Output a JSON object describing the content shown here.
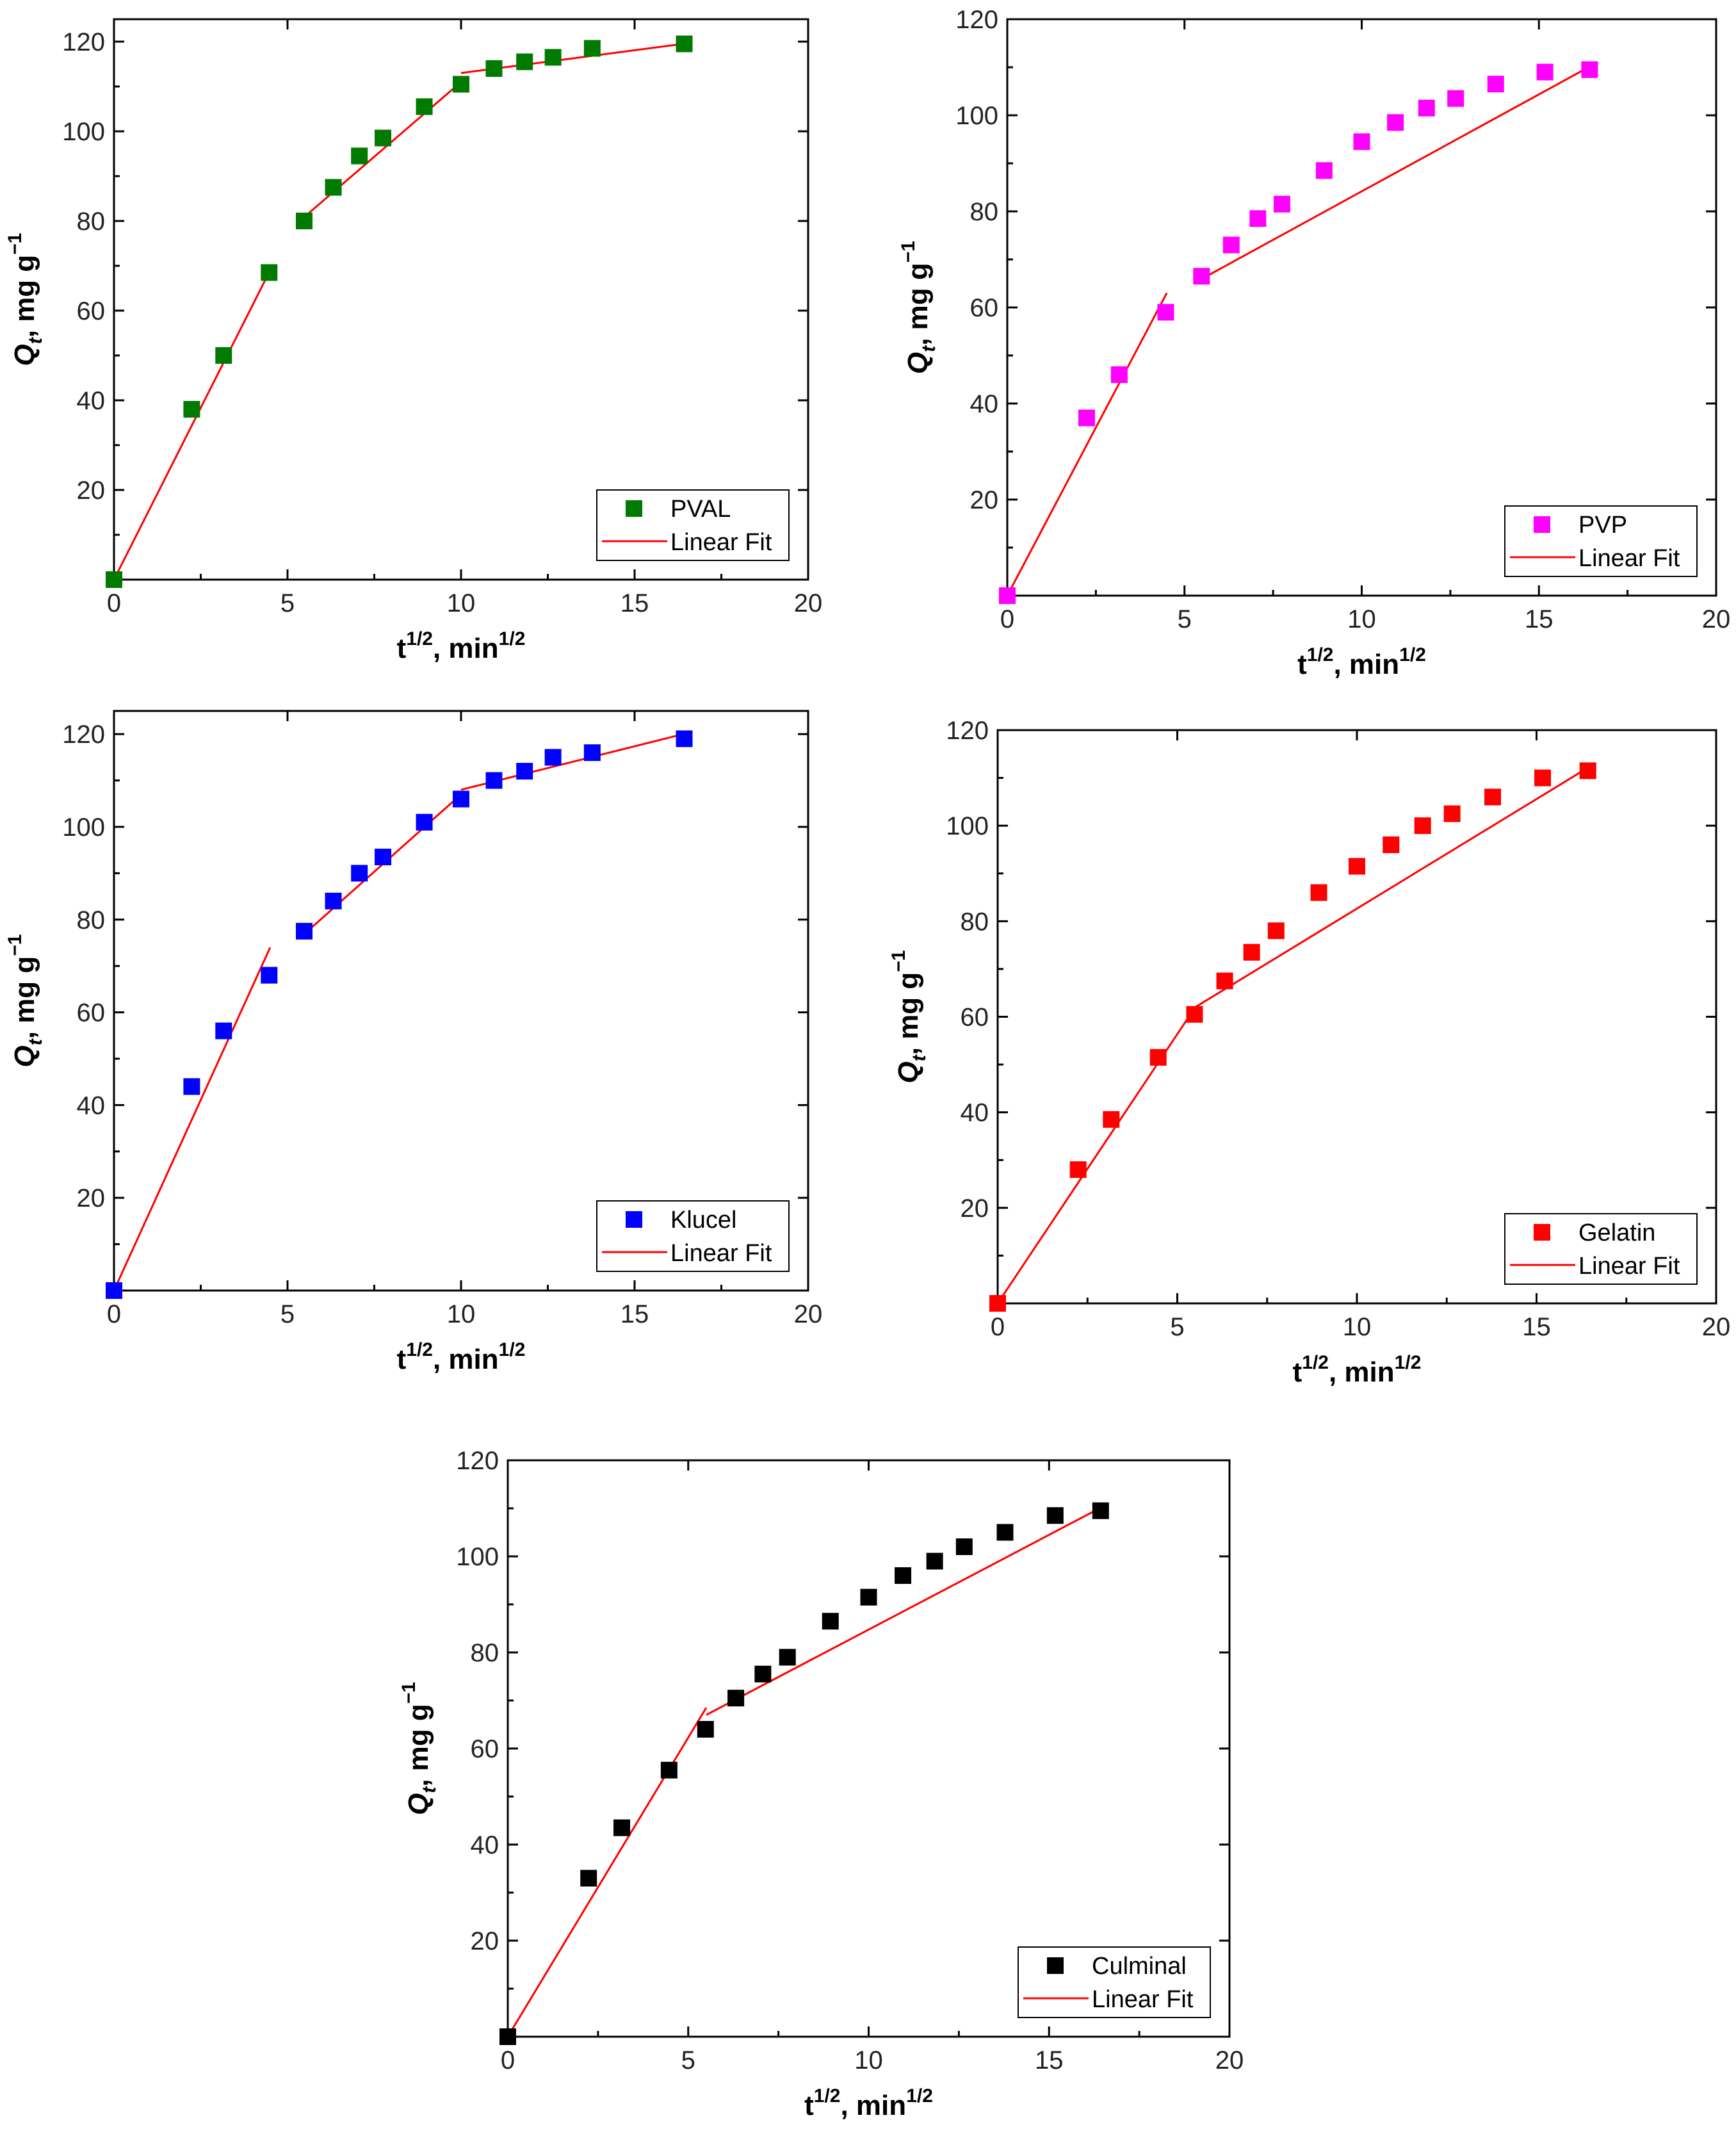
{
  "chart_data": [
    {
      "type": "scatter",
      "id": "pval",
      "xlabel": "t",
      "xlabel_sup": "1/2",
      "xlabel_mid": ", min",
      "xlabel_sup2": "1/2",
      "ylabel": "Q",
      "ylabel_sub": "t",
      "ylabel_unit": ", mg g",
      "ylabel_sup": "−1",
      "xlim": [
        0,
        20
      ],
      "ylim": [
        0,
        125
      ],
      "xticks": [
        0,
        5,
        10,
        15,
        20
      ],
      "yticks": [
        20,
        40,
        60,
        80,
        100,
        120
      ],
      "legend_position": "bottom-right",
      "series": [
        {
          "name": "PVAL",
          "color": "#007a00",
          "x": [
            0,
            2.24,
            3.16,
            4.47,
            5.48,
            6.32,
            7.07,
            7.75,
            8.94,
            10,
            10.95,
            11.83,
            12.65,
            13.78,
            16.43
          ],
          "y": [
            0,
            38,
            50,
            68.5,
            80,
            87.5,
            94.5,
            98.5,
            105.5,
            110.5,
            114,
            115.5,
            116.5,
            118.5,
            119.5
          ]
        }
      ],
      "fit_label": "Linear Fit",
      "fit_segments": [
        {
          "x": [
            0,
            4.5
          ],
          "y": [
            0,
            69
          ]
        },
        {
          "x": [
            5.5,
            10
          ],
          "y": [
            81,
            111
          ]
        },
        {
          "x": [
            10,
            16.4
          ],
          "y": [
            113,
            119.5
          ]
        }
      ]
    },
    {
      "type": "scatter",
      "id": "pvp",
      "xlabel": "t",
      "xlabel_sup": "1/2",
      "xlabel_mid": ", min",
      "xlabel_sup2": "1/2",
      "ylabel": "Q",
      "ylabel_sub": "t",
      "ylabel_unit": ", mg g",
      "ylabel_sup": "−1",
      "xlim": [
        0,
        20
      ],
      "ylim": [
        0,
        120
      ],
      "xticks": [
        0,
        5,
        10,
        15,
        20
      ],
      "yticks": [
        20,
        40,
        60,
        80,
        100,
        120
      ],
      "legend_position": "bottom-right",
      "series": [
        {
          "name": "PVP",
          "color": "#ff00ff",
          "x": [
            0,
            2.24,
            3.16,
            4.47,
            5.48,
            6.32,
            7.07,
            7.75,
            8.94,
            10,
            10.95,
            11.83,
            12.65,
            13.78,
            15.17,
            16.43
          ],
          "y": [
            0,
            37,
            46,
            59,
            66.5,
            73,
            78.5,
            81.5,
            88.5,
            94.5,
            98.5,
            101.5,
            103.5,
            106.5,
            109,
            109.5
          ]
        }
      ],
      "fit_label": "Linear Fit",
      "fit_segments": [
        {
          "x": [
            0,
            4.5
          ],
          "y": [
            0,
            63
          ]
        },
        {
          "x": [
            5.5,
            16.4
          ],
          "y": [
            66,
            110
          ]
        }
      ]
    },
    {
      "type": "scatter",
      "id": "klucel",
      "xlabel": "t",
      "xlabel_sup": "1/2",
      "xlabel_mid": ", min",
      "xlabel_sup2": "1/2",
      "ylabel": "Q",
      "ylabel_sub": "t",
      "ylabel_unit": ", mg g",
      "ylabel_sup": "−1",
      "xlim": [
        0,
        20
      ],
      "ylim": [
        0,
        125
      ],
      "xticks": [
        0,
        5,
        10,
        15,
        20
      ],
      "yticks": [
        20,
        40,
        60,
        80,
        100,
        120
      ],
      "legend_position": "bottom-right",
      "series": [
        {
          "name": "Klucel",
          "color": "#0000ff",
          "x": [
            0,
            2.24,
            3.16,
            4.47,
            5.48,
            6.32,
            7.07,
            7.75,
            8.94,
            10,
            10.95,
            11.83,
            12.65,
            13.78,
            16.43
          ],
          "y": [
            0,
            44,
            56,
            68,
            77.5,
            84,
            90,
            93.5,
            101,
            106,
            110,
            112,
            115,
            116,
            119
          ]
        }
      ],
      "fit_label": "Linear Fit",
      "fit_segments": [
        {
          "x": [
            0,
            4.5
          ],
          "y": [
            0,
            74
          ]
        },
        {
          "x": [
            5.5,
            10
          ],
          "y": [
            77,
            107
          ]
        },
        {
          "x": [
            10,
            16.4
          ],
          "y": [
            108,
            120
          ]
        }
      ]
    },
    {
      "type": "scatter",
      "id": "gelatin",
      "xlabel": "t",
      "xlabel_sup": "1/2",
      "xlabel_mid": ", min",
      "xlabel_sup2": "1/2",
      "ylabel": "Q",
      "ylabel_sub": "t",
      "ylabel_unit": ", mg g",
      "ylabel_sup": "−1",
      "xlim": [
        0,
        20
      ],
      "ylim": [
        0,
        120
      ],
      "xticks": [
        0,
        5,
        10,
        15,
        20
      ],
      "yticks": [
        20,
        40,
        60,
        80,
        100,
        120
      ],
      "legend_position": "bottom-right",
      "series": [
        {
          "name": "Gelatin",
          "color": "#ff0000",
          "x": [
            0,
            2.24,
            3.16,
            4.47,
            5.48,
            6.32,
            7.07,
            7.75,
            8.94,
            10,
            10.95,
            11.83,
            12.65,
            13.78,
            15.17,
            16.43
          ],
          "y": [
            0,
            28,
            38.5,
            51.5,
            60.5,
            67.5,
            73.5,
            78,
            86,
            91.5,
            96,
            100,
            102.5,
            106,
            110,
            111.5
          ]
        }
      ],
      "fit_label": "Linear Fit",
      "fit_segments": [
        {
          "x": [
            0,
            5.5
          ],
          "y": [
            0,
            62
          ]
        },
        {
          "x": [
            5.5,
            16.4
          ],
          "y": [
            62,
            112
          ]
        }
      ]
    },
    {
      "type": "scatter",
      "id": "culminal",
      "xlabel": "t",
      "xlabel_sup": "1/2",
      "xlabel_mid": ", min",
      "xlabel_sup2": "1/2",
      "ylabel": "Q",
      "ylabel_sub": "t",
      "ylabel_unit": ", mg g",
      "ylabel_sup": "−1",
      "xlim": [
        0,
        20
      ],
      "ylim": [
        0,
        120
      ],
      "xticks": [
        0,
        5,
        10,
        15,
        20
      ],
      "yticks": [
        20,
        40,
        60,
        80,
        100,
        120
      ],
      "legend_position": "bottom-right",
      "series": [
        {
          "name": "Culminal",
          "color": "#000000",
          "x": [
            0,
            2.24,
            3.16,
            4.47,
            5.48,
            6.32,
            7.07,
            7.75,
            8.94,
            10,
            10.95,
            11.83,
            12.65,
            13.78,
            15.17,
            16.43
          ],
          "y": [
            0,
            33,
            43.5,
            55.5,
            64,
            70.5,
            75.5,
            79,
            86.5,
            91.5,
            96,
            99,
            102,
            105,
            108.5,
            109.5
          ]
        }
      ],
      "fit_label": "Linear Fit",
      "fit_segments": [
        {
          "x": [
            0,
            5.5
          ],
          "y": [
            0,
            68.5
          ]
        },
        {
          "x": [
            5.5,
            16.4
          ],
          "y": [
            67,
            110
          ]
        }
      ]
    }
  ]
}
